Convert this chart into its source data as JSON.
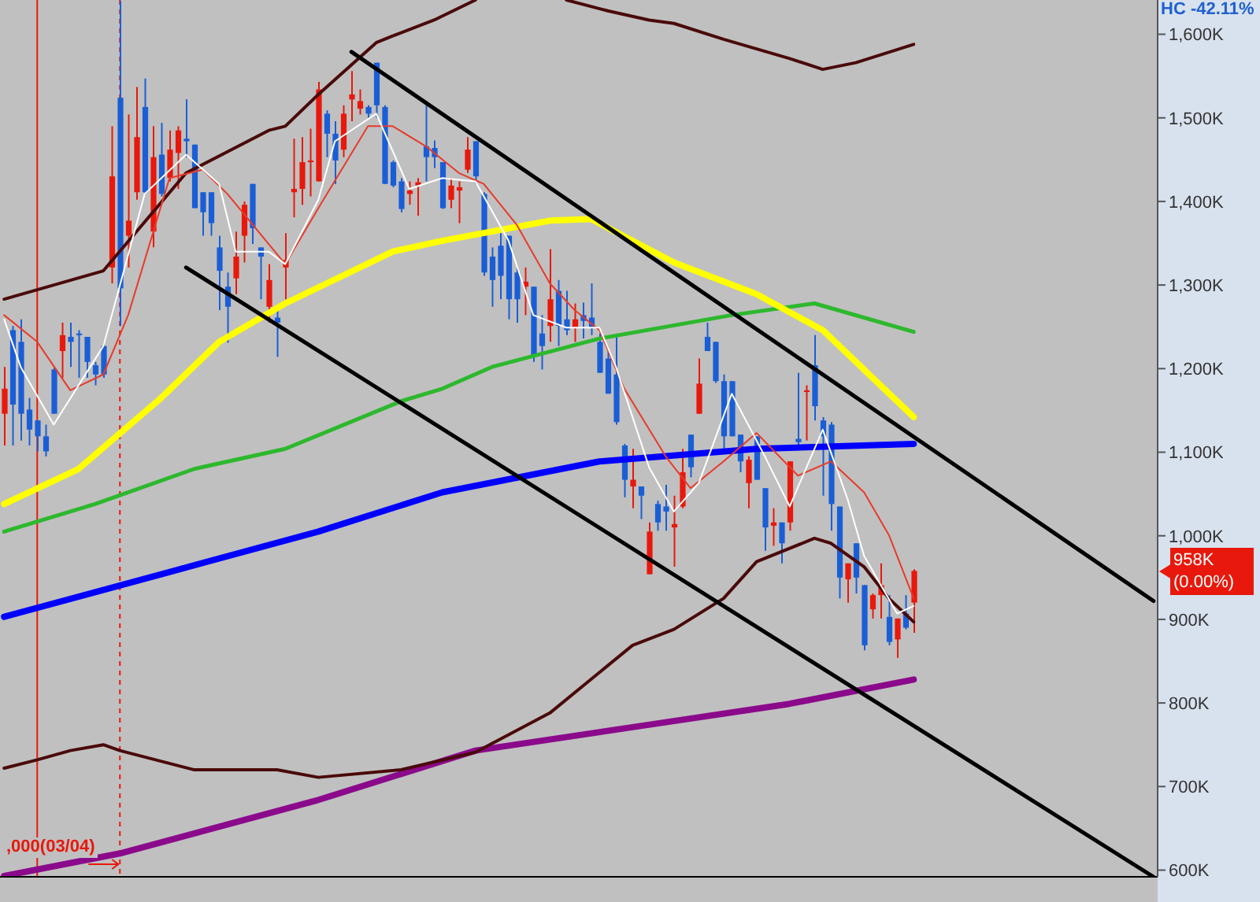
{
  "chart_data": {
    "type": "candlestick",
    "categories": [
      null,
      null,
      null,
      null,
      null,
      null,
      null,
      null,
      null,
      null,
      null,
      null,
      null,
      null,
      null,
      null,
      null,
      null,
      null,
      null,
      null,
      null,
      null,
      null,
      null,
      null,
      null,
      null,
      null,
      null,
      null,
      null,
      null,
      null,
      null,
      null,
      null,
      null,
      null,
      null,
      null,
      null,
      null,
      null,
      null,
      null,
      null,
      null,
      null,
      null,
      null,
      null,
      null,
      null,
      null,
      null,
      null,
      null,
      null,
      null,
      null,
      null,
      null,
      null,
      null,
      null,
      null,
      null,
      null,
      null,
      null,
      null,
      null,
      null,
      null,
      null,
      null,
      null,
      null,
      null,
      null,
      null,
      null,
      null,
      null,
      null,
      null,
      null,
      null,
      null,
      null,
      null,
      null,
      null,
      null,
      null,
      null,
      null,
      null,
      null,
      null,
      null,
      null,
      null,
      null,
      null,
      null,
      null,
      null,
      null,
      null,
      null,
      null,
      null,
      null,
      null,
      null,
      null,
      null,
      null,
      null,
      null,
      null,
      null,
      null,
      null,
      null,
      null,
      null,
      null,
      null,
      null,
      null,
      null,
      null,
      null,
      null,
      null,
      null,
      null
    ],
    "ohlc": [
      [
        1146,
        1202,
        1108,
        1176
      ],
      [
        1246,
        1251,
        1108,
        1157
      ],
      [
        1232,
        1259,
        1114,
        1146
      ],
      [
        1151,
        1165,
        1108,
        1127
      ],
      [
        1138,
        1138,
        1101,
        1119
      ],
      [
        1119,
        1133,
        1095,
        1101
      ],
      [
        1199,
        1202,
        1146,
        1146
      ],
      [
        1221,
        1255,
        1189,
        1240
      ],
      [
        1238,
        1255,
        1202,
        1232
      ],
      [
        1242,
        1246,
        1189,
        1240
      ],
      [
        1238,
        1238,
        1189,
        1208
      ],
      [
        1204,
        1208,
        1180,
        1193
      ],
      [
        1227,
        1231,
        1189,
        1193
      ],
      [
        1321,
        1490,
        1302,
        1430
      ],
      [
        1524,
        1640,
        1251,
        1296
      ],
      [
        1359,
        1504,
        1321,
        1377
      ],
      [
        1411,
        1537,
        1402,
        1477
      ],
      [
        1513,
        1547,
        1409,
        1411
      ],
      [
        1364,
        1490,
        1345,
        1453
      ],
      [
        1456,
        1494,
        1406,
        1409
      ],
      [
        1428,
        1485,
        1424,
        1462
      ],
      [
        1458,
        1490,
        1415,
        1485
      ],
      [
        1475,
        1522,
        1453,
        1472
      ],
      [
        1468,
        1468,
        1392,
        1392
      ],
      [
        1411,
        1411,
        1359,
        1387
      ],
      [
        1411,
        1411,
        1359,
        1374
      ],
      [
        1345,
        1359,
        1270,
        1317
      ],
      [
        1298,
        1315,
        1231,
        1274
      ],
      [
        1308,
        1364,
        1289,
        1334
      ],
      [
        1359,
        1400,
        1327,
        1396
      ],
      [
        1421,
        1421,
        1349,
        1368
      ],
      [
        1345,
        1345,
        1283,
        1334
      ],
      [
        1274,
        1325,
        1255,
        1306
      ],
      [
        1261,
        1270,
        1214,
        1255
      ],
      [
        1321,
        1362,
        1283,
        1330
      ],
      [
        1411,
        1475,
        1381,
        1415
      ],
      [
        1415,
        1477,
        1396,
        1447
      ],
      [
        1447,
        1487,
        1406,
        1449
      ],
      [
        1424,
        1543,
        1424,
        1534
      ],
      [
        1505,
        1509,
        1453,
        1481
      ],
      [
        1481,
        1496,
        1421,
        1449
      ],
      [
        1462,
        1515,
        1453,
        1505
      ],
      [
        1522,
        1556,
        1496,
        1528
      ],
      [
        1511,
        1534,
        1504,
        1520
      ],
      [
        1513,
        1515,
        1500,
        1505
      ],
      [
        1566,
        1566,
        1500,
        1515
      ],
      [
        1513,
        1515,
        1421,
        1421
      ],
      [
        1447,
        1449,
        1417,
        1419
      ],
      [
        1424,
        1428,
        1387,
        1391
      ],
      [
        1409,
        1424,
        1396,
        1413
      ],
      [
        1419,
        1428,
        1383,
        1423
      ],
      [
        1466,
        1519,
        1424,
        1453
      ],
      [
        1464,
        1473,
        1440,
        1453
      ],
      [
        1447,
        1447,
        1391,
        1392
      ],
      [
        1402,
        1428,
        1392,
        1419
      ],
      [
        1413,
        1424,
        1374,
        1417
      ],
      [
        1438,
        1477,
        1434,
        1462
      ],
      [
        1472,
        1472,
        1421,
        1430
      ],
      [
        1409,
        1411,
        1311,
        1315
      ],
      [
        1334,
        1345,
        1274,
        1306
      ],
      [
        1347,
        1362,
        1283,
        1311
      ],
      [
        1359,
        1359,
        1259,
        1283
      ],
      [
        1315,
        1321,
        1255,
        1283
      ],
      [
        1298,
        1321,
        1264,
        1304
      ],
      [
        1298,
        1298,
        1208,
        1214
      ],
      [
        1242,
        1264,
        1199,
        1227
      ],
      [
        1251,
        1343,
        1232,
        1283
      ],
      [
        1293,
        1306,
        1227,
        1251
      ],
      [
        1259,
        1293,
        1240,
        1246
      ],
      [
        1249,
        1278,
        1232,
        1259
      ],
      [
        1264,
        1279,
        1236,
        1257
      ],
      [
        1261,
        1302,
        1240,
        1249
      ],
      [
        1232,
        1242,
        1195,
        1195
      ],
      [
        1212,
        1221,
        1170,
        1170
      ],
      [
        1193,
        1240,
        1133,
        1136
      ],
      [
        1108,
        1110,
        1046,
        1067
      ],
      [
        1059,
        1104,
        1033,
        1067
      ],
      [
        1059,
        1059,
        1020,
        1048
      ],
      [
        954,
        1016,
        954,
        1005
      ],
      [
        1038,
        1042,
        1006,
        1016
      ],
      [
        1035,
        1061,
        1006,
        1029
      ],
      [
        1010,
        1048,
        963,
        1014
      ],
      [
        1035,
        1104,
        1033,
        1076
      ],
      [
        1121,
        1121,
        1070,
        1082
      ],
      [
        1146,
        1212,
        1146,
        1182
      ],
      [
        1238,
        1255,
        1221,
        1221
      ],
      [
        1232,
        1232,
        1183,
        1185
      ],
      [
        1185,
        1193,
        1101,
        1119
      ],
      [
        1185,
        1185,
        1119,
        1119
      ],
      [
        1121,
        1121,
        1076,
        1089
      ],
      [
        1063,
        1095,
        1033,
        1091
      ],
      [
        1119,
        1119,
        1067,
        1067
      ],
      [
        1057,
        1057,
        982,
        1010
      ],
      [
        1012,
        1033,
        988,
        1016
      ],
      [
        1016,
        1016,
        967,
        991
      ],
      [
        1016,
        1089,
        1006,
        1089
      ],
      [
        1116,
        1195,
        1108,
        1112
      ],
      [
        1172,
        1180,
        1114,
        1174
      ],
      [
        1204,
        1240,
        1138,
        1155
      ],
      [
        1138,
        1142,
        1048,
        1119
      ],
      [
        1133,
        1136,
        1006,
        1038
      ],
      [
        1035,
        1035,
        925,
        950
      ],
      [
        948,
        967,
        920,
        967
      ],
      [
        991,
        991,
        931,
        950
      ],
      [
        941,
        941,
        863,
        869
      ],
      [
        912,
        931,
        901,
        929
      ],
      [
        929,
        967,
        901,
        941
      ],
      [
        903,
        929,
        869,
        873
      ],
      [
        876,
        901,
        854,
        901
      ],
      [
        907,
        929,
        888,
        890
      ],
      [
        920,
        960,
        884,
        958
      ],
      null,
      null,
      null,
      null,
      null,
      null,
      null,
      null,
      null,
      null,
      null,
      null,
      null,
      null,
      null,
      null,
      null,
      null,
      null,
      null,
      null,
      null,
      null,
      null,
      null,
      null,
      null,
      null,
      null
    ],
    "colors": [
      "#e8180c",
      "#1a5ed6",
      "#1a5ed6",
      "#1a5ed6",
      "#1a5ed6",
      "#1a5ed6",
      "#1a5ed6",
      "#e8180c",
      "#1a5ed6",
      "#1a5ed6",
      "#1a5ed6",
      "#1a5ed6",
      "#1a5ed6",
      "#e8180c",
      "#1a5ed6",
      "#e8180c",
      "#e8180c",
      "#1a5ed6",
      "#e8180c",
      "#1a5ed6",
      "#e8180c",
      "#e8180c",
      "#1a5ed6",
      "#1a5ed6",
      "#1a5ed6",
      "#1a5ed6",
      "#1a5ed6",
      "#1a5ed6",
      "#e8180c",
      "#e8180c",
      "#1a5ed6",
      "#1a5ed6",
      "#e8180c",
      "#1a5ed6",
      "#e8180c",
      "#e8180c",
      "#e8180c",
      "#e8180c",
      "#e8180c",
      "#1a5ed6",
      "#1a5ed6",
      "#e8180c",
      "#e8180c",
      "#e8180c",
      "#1a5ed6",
      "#1a5ed6",
      "#1a5ed6",
      "#1a5ed6",
      "#1a5ed6",
      "#e8180c",
      "#e8180c",
      "#1a5ed6",
      "#1a5ed6",
      "#1a5ed6",
      "#e8180c",
      "#e8180c",
      "#e8180c",
      "#1a5ed6",
      "#1a5ed6",
      "#1a5ed6",
      "#1a5ed6",
      "#1a5ed6",
      "#1a5ed6",
      "#e8180c",
      "#1a5ed6",
      "#1a5ed6",
      "#e8180c",
      "#1a5ed6",
      "#1a5ed6",
      "#e8180c",
      "#1a5ed6",
      "#1a5ed6",
      "#1a5ed6",
      "#1a5ed6",
      "#1a5ed6",
      "#1a5ed6",
      "#e8180c",
      "#1a5ed6",
      "#e8180c",
      "#1a5ed6",
      "#1a5ed6",
      "#e8180c",
      "#e8180c",
      "#1a5ed6",
      "#e8180c",
      "#1a5ed6",
      "#1a5ed6",
      "#1a5ed6",
      "#1a5ed6",
      "#1a5ed6",
      "#e8180c",
      "#1a5ed6",
      "#1a5ed6",
      "#e8180c",
      "#1a5ed6",
      "#e8180c",
      "#1a5ed6",
      "#e8180c",
      "#1a5ed6",
      "#1a5ed6",
      "#1a5ed6",
      "#1a5ed6",
      "#e8180c",
      "#1a5ed6",
      "#1a5ed6",
      "#e8180c",
      "#e8180c",
      "#1a5ed6",
      "#e8180c",
      "#1a5ed6",
      "#e8180c",
      null,
      null,
      null,
      null,
      null,
      null,
      null,
      null,
      null,
      null,
      null,
      null,
      null,
      null,
      null,
      null,
      null,
      null,
      null,
      null,
      null,
      null,
      null,
      null,
      null,
      null,
      null,
      null,
      null
    ],
    "series": [
      {
        "type": "line",
        "color": "#8b0a8b",
        "values": [
          593,
          null,
          null,
          null,
          null,
          null,
          null,
          null,
          null,
          null,
          null,
          null,
          null,
          null,
          620,
          null,
          null,
          null,
          null,
          null,
          null,
          null,
          null,
          null,
          null,
          null,
          null,
          null,
          null,
          null,
          null,
          null,
          null,
          null,
          null,
          null,
          null,
          null,
          684,
          null,
          null,
          null,
          null,
          null,
          null,
          null,
          null,
          null,
          null,
          null,
          null,
          null,
          null,
          null,
          null,
          null,
          null,
          743,
          null,
          null,
          null,
          null,
          null,
          null,
          null,
          null,
          null,
          null,
          null,
          null,
          null,
          null,
          null,
          null,
          null,
          null,
          771,
          null,
          null,
          null,
          null,
          null,
          null,
          null,
          null,
          null,
          null,
          null,
          null,
          null,
          null,
          null,
          null,
          null,
          null,
          799,
          null,
          null,
          null,
          null,
          null,
          null,
          null,
          null,
          null,
          null,
          null,
          null,
          null,
          null,
          828,
          null,
          null,
          null,
          null,
          null,
          null,
          null,
          null,
          null,
          null,
          null,
          null,
          null,
          null,
          null,
          null,
          null,
          null,
          null,
          null,
          null,
          null,
          null,
          null,
          null,
          null,
          null,
          null,
          null
        ]
      },
      {
        "type": "line",
        "color": "#0000ff",
        "values": [
          903,
          null,
          null,
          null,
          null,
          null,
          null,
          null,
          null,
          null,
          null,
          null,
          null,
          null,
          null,
          null,
          null,
          null,
          null,
          954,
          null,
          null,
          null,
          null,
          null,
          null,
          null,
          null,
          null,
          null,
          null,
          null,
          null,
          null,
          null,
          null,
          null,
          null,
          1005,
          null,
          null,
          null,
          null,
          null,
          null,
          null,
          null,
          null,
          null,
          null,
          null,
          null,
          null,
          1052,
          null,
          null,
          null,
          null,
          null,
          null,
          null,
          null,
          null,
          null,
          null,
          null,
          null,
          null,
          null,
          null,
          null,
          null,
          1089,
          null,
          null,
          null,
          null,
          null,
          null,
          null,
          null,
          null,
          null,
          null,
          null,
          null,
          null,
          null,
          null,
          null,
          null,
          1104,
          null,
          null,
          null,
          null,
          null,
          null,
          null,
          null,
          null,
          null,
          null,
          null,
          null,
          null,
          null,
          null,
          null,
          null,
          1110,
          null,
          null,
          null,
          null,
          null,
          null,
          null,
          null,
          null,
          null,
          null,
          null,
          null,
          null,
          null,
          null,
          null,
          null,
          null,
          null,
          null,
          null,
          null,
          null,
          null,
          null,
          null,
          null,
          null
        ]
      },
      {
        "type": "line",
        "color": "#2db82d",
        "values": [
          1005,
          null,
          null,
          null,
          null,
          null,
          null,
          null,
          null,
          null,
          null,
          1038,
          null,
          null,
          null,
          null,
          null,
          null,
          null,
          null,
          null,
          null,
          null,
          1080,
          null,
          null,
          null,
          null,
          null,
          null,
          null,
          null,
          null,
          null,
          1104,
          null,
          null,
          null,
          null,
          null,
          null,
          null,
          null,
          null,
          null,
          null,
          null,
          null,
          1161,
          null,
          null,
          null,
          null,
          1176,
          null,
          null,
          null,
          null,
          null,
          1202,
          null,
          null,
          null,
          null,
          null,
          null,
          null,
          null,
          null,
          null,
          null,
          null,
          1236,
          null,
          null,
          null,
          null,
          null,
          null,
          null,
          null,
          null,
          null,
          null,
          null,
          null,
          null,
          null,
          1264,
          null,
          null,
          null,
          null,
          null,
          null,
          null,
          null,
          null,
          1278,
          null,
          null,
          null,
          null,
          null,
          null,
          null,
          null,
          null,
          null,
          null,
          1244,
          null,
          null,
          null,
          null,
          null,
          null,
          null,
          null,
          null,
          null,
          null,
          null,
          null,
          null,
          null,
          null,
          null,
          null,
          null,
          null,
          null,
          null,
          null,
          null,
          null,
          null,
          null,
          null,
          null
        ]
      },
      {
        "type": "line",
        "color": "#ffff00",
        "values": [
          1038,
          null,
          null,
          null,
          null,
          null,
          null,
          null,
          null,
          1080,
          null,
          null,
          null,
          null,
          null,
          null,
          null,
          null,
          null,
          1165,
          null,
          null,
          null,
          null,
          null,
          null,
          1232,
          null,
          null,
          null,
          null,
          null,
          null,
          null,
          1278,
          null,
          null,
          null,
          null,
          null,
          null,
          null,
          null,
          null,
          null,
          null,
          null,
          1340,
          null,
          null,
          null,
          null,
          null,
          1353,
          null,
          null,
          null,
          null,
          null,
          null,
          null,
          null,
          null,
          null,
          null,
          null,
          1377,
          null,
          null,
          null,
          null,
          1379,
          null,
          null,
          null,
          null,
          null,
          null,
          null,
          null,
          null,
          1327,
          null,
          null,
          null,
          null,
          null,
          null,
          null,
          null,
          null,
          1289,
          null,
          null,
          null,
          null,
          null,
          null,
          null,
          1246,
          null,
          null,
          null,
          null,
          null,
          null,
          null,
          null,
          null,
          null,
          1142,
          null,
          null,
          null,
          null,
          null,
          null,
          null,
          null,
          null,
          null,
          null,
          null,
          null,
          null,
          null,
          null,
          null,
          null,
          null,
          null,
          null,
          null,
          null,
          null,
          null,
          null,
          null,
          null,
          null
        ]
      },
      {
        "type": "line",
        "color": "#4a0a0a",
        "values": [
          1283,
          null,
          null,
          null,
          null,
          null,
          null,
          null,
          null,
          null,
          null,
          null,
          1317,
          null,
          null,
          null,
          null,
          null,
          null,
          null,
          null,
          null,
          1434,
          null,
          null,
          null,
          null,
          null,
          null,
          null,
          null,
          null,
          1485,
          null,
          1490,
          null,
          null,
          null,
          1528,
          null,
          null,
          null,
          null,
          null,
          null,
          1590,
          null,
          1598,
          null,
          null,
          null,
          null,
          1617,
          null,
          null,
          null,
          null,
          1641,
          null,
          null,
          null,
          null,
          null,
          null,
          null,
          null,
          null,
          null,
          null,
          null,
          null,
          null,
          null,
          null,
          null,
          null,
          null,
          null,
          null,
          null,
          null,
          null,
          null,
          null,
          null,
          null,
          null,
          null,
          null,
          null,
          null,
          null,
          null,
          null,
          null,
          null,
          null,
          null,
          null,
          null,
          null,
          null,
          null,
          null,
          null,
          null,
          null,
          null,
          null,
          null,
          null,
          null,
          null,
          null,
          null,
          null,
          null,
          null,
          null,
          null,
          null,
          null,
          null,
          null,
          null,
          null,
          null,
          null,
          null,
          null,
          null,
          null,
          null,
          null,
          null,
          null,
          null,
          null,
          null,
          null
        ]
      },
      {
        "type": "line",
        "color": "#4a0a0a",
        "values": [
          null,
          null,
          null,
          null,
          null,
          null,
          null,
          null,
          null,
          null,
          null,
          null,
          null,
          null,
          null,
          null,
          null,
          null,
          null,
          null,
          null,
          null,
          null,
          null,
          null,
          null,
          null,
          null,
          null,
          null,
          null,
          null,
          null,
          null,
          null,
          null,
          null,
          null,
          null,
          null,
          null,
          null,
          null,
          null,
          null,
          null,
          null,
          null,
          null,
          null,
          null,
          null,
          null,
          null,
          null,
          null,
          null,
          null,
          null,
          null,
          null,
          null,
          null,
          null,
          null,
          null,
          null,
          null,
          1641,
          null,
          null,
          null,
          null,
          1628,
          null,
          null,
          null,
          null,
          1617,
          null,
          null,
          1613,
          null,
          null,
          null,
          null,
          null,
          1594,
          null,
          null,
          null,
          null,
          null,
          null,
          null,
          1571,
          null,
          null,
          null,
          1558,
          null,
          null,
          null,
          1566,
          null,
          null,
          null,
          null,
          null,
          null,
          1588,
          null,
          null,
          null,
          null,
          null,
          null,
          null,
          null,
          null,
          null,
          null,
          null,
          null,
          null,
          null,
          null,
          null,
          null,
          null,
          null,
          null,
          null,
          null,
          null,
          null,
          null,
          null,
          null,
          null
        ]
      },
      {
        "type": "line",
        "color": "#4a0a0a",
        "values": [
          722,
          null,
          null,
          null,
          732,
          null,
          null,
          null,
          743,
          null,
          null,
          null,
          750,
          null,
          743,
          null,
          null,
          null,
          null,
          null,
          null,
          null,
          null,
          720,
          null,
          null,
          null,
          null,
          null,
          null,
          null,
          null,
          null,
          720,
          null,
          null,
          null,
          null,
          711,
          null,
          null,
          null,
          null,
          null,
          null,
          null,
          null,
          null,
          720,
          null,
          null,
          null,
          null,
          null,
          null,
          null,
          null,
          741,
          null,
          null,
          null,
          null,
          null,
          null,
          null,
          null,
          788,
          null,
          null,
          null,
          null,
          null,
          null,
          null,
          null,
          null,
          869,
          null,
          null,
          null,
          null,
          888,
          null,
          null,
          null,
          null,
          null,
          925,
          null,
          null,
          null,
          969,
          null,
          null,
          null,
          null,
          null,
          null,
          997,
          null,
          991,
          null,
          null,
          null,
          963,
          null,
          null,
          925,
          null,
          null,
          897,
          null,
          null,
          null,
          null,
          null,
          null,
          null,
          null,
          null,
          null,
          null,
          null,
          null,
          null,
          null,
          null,
          null,
          null,
          null,
          null,
          null,
          null,
          null,
          null,
          null,
          null,
          null,
          null,
          null
        ]
      },
      {
        "type": "line",
        "color": "#e83a2a",
        "values": [
          1264,
          null,
          null,
          null,
          1232,
          null,
          null,
          null,
          1174,
          null,
          null,
          null,
          1193,
          null,
          null,
          1264,
          null,
          null,
          null,
          null,
          1428,
          null,
          null,
          null,
          1438,
          null,
          null,
          1409,
          null,
          null,
          null,
          null,
          null,
          null,
          1325,
          null,
          null,
          null,
          1392,
          null,
          null,
          null,
          null,
          null,
          1490,
          null,
          null,
          1490,
          null,
          null,
          null,
          1466,
          null,
          null,
          null,
          1434,
          null,
          null,
          1421,
          null,
          null,
          null,
          1372,
          null,
          null,
          null,
          1302,
          null,
          null,
          1270,
          null,
          null,
          1246,
          null,
          null,
          1176,
          null,
          null,
          null,
          null,
          1095,
          null,
          null,
          1057,
          null,
          null,
          null,
          1089,
          null,
          null,
          null,
          1123,
          null,
          null,
          null,
          null,
          1072,
          null,
          null,
          null,
          1089,
          null,
          null,
          null,
          1052,
          null,
          null,
          1001,
          null,
          null,
          925,
          null,
          null,
          null,
          null,
          null,
          null,
          null,
          null,
          null,
          null,
          null,
          null,
          null,
          null,
          null,
          null,
          null,
          null,
          null,
          null,
          null,
          null,
          null,
          null,
          null,
          null,
          null,
          null,
          null
        ]
      },
      {
        "type": "line",
        "color": "#ffffff",
        "values": [
          1259,
          null,
          1202,
          null,
          null,
          null,
          1133,
          null,
          null,
          null,
          null,
          null,
          1227,
          null,
          null,
          null,
          null,
          1409,
          null,
          null,
          null,
          null,
          1456,
          null,
          null,
          null,
          1421,
          null,
          1340,
          null,
          null,
          null,
          1340,
          null,
          1325,
          null,
          null,
          null,
          1402,
          null,
          1472,
          null,
          null,
          null,
          null,
          1505,
          null,
          null,
          null,
          1415,
          null,
          null,
          null,
          1428,
          null,
          null,
          null,
          1424,
          null,
          null,
          null,
          1353,
          null,
          null,
          1264,
          null,
          null,
          null,
          1249,
          null,
          null,
          null,
          1249,
          null,
          1202,
          null,
          null,
          null,
          1082,
          null,
          null,
          1029,
          null,
          null,
          1063,
          null,
          null,
          null,
          1170,
          null,
          null,
          null,
          1095,
          null,
          null,
          1035,
          null,
          null,
          null,
          1127,
          null,
          null,
          1044,
          null,
          976,
          null,
          null,
          null,
          907,
          null,
          916,
          null,
          null,
          null,
          null,
          null,
          null,
          null,
          null,
          null,
          null,
          null,
          null,
          null,
          null,
          null,
          null,
          null,
          null,
          null,
          null,
          null,
          null,
          null,
          null,
          null,
          null,
          null,
          null,
          null
        ]
      },
      {
        "type": "line",
        "color": "#000000",
        "values": [
          null,
          null,
          null,
          null,
          null,
          null,
          null,
          null,
          null,
          null,
          null,
          null,
          null,
          null,
          null,
          null,
          null,
          null,
          null,
          null,
          null,
          null,
          null,
          null,
          null,
          null,
          null,
          null,
          null,
          null,
          null,
          null,
          null,
          null,
          null,
          null,
          null,
          null,
          null,
          null,
          null,
          null,
          1579,
          null,
          null,
          null,
          null,
          null,
          null,
          null,
          null,
          null,
          null,
          null,
          null,
          null,
          null,
          null,
          null,
          null,
          null,
          null,
          null,
          null,
          null,
          null,
          null,
          null,
          null,
          null,
          null,
          null,
          null,
          null,
          null,
          null,
          null,
          null,
          null,
          null,
          null,
          null,
          null,
          null,
          null,
          null,
          null,
          null,
          null,
          null,
          null,
          null,
          null,
          null,
          null,
          null,
          null,
          null,
          null,
          null,
          null,
          null,
          null,
          null,
          null,
          null,
          null,
          null,
          null,
          null,
          null,
          null,
          null,
          null,
          null,
          null,
          null,
          null,
          null,
          null,
          null,
          null,
          null,
          null,
          null,
          null,
          null,
          null,
          null,
          null,
          null,
          null,
          null,
          null,
          null,
          null,
          null,
          null,
          null,
          922
        ]
      },
      {
        "type": "line",
        "color": "#000000",
        "values": [
          null,
          null,
          null,
          null,
          null,
          null,
          null,
          null,
          null,
          null,
          null,
          null,
          null,
          null,
          null,
          null,
          null,
          null,
          null,
          null,
          null,
          null,
          1321,
          null,
          null,
          null,
          null,
          null,
          null,
          null,
          null,
          null,
          null,
          null,
          null,
          null,
          null,
          null,
          null,
          null,
          null,
          null,
          null,
          null,
          null,
          null,
          null,
          null,
          null,
          null,
          null,
          null,
          null,
          null,
          null,
          null,
          null,
          null,
          null,
          null,
          null,
          null,
          null,
          null,
          null,
          null,
          null,
          null,
          null,
          null,
          null,
          null,
          null,
          null,
          null,
          null,
          null,
          null,
          null,
          null,
          null,
          null,
          null,
          null,
          null,
          null,
          null,
          null,
          null,
          null,
          null,
          null,
          null,
          null,
          null,
          null,
          null,
          null,
          null,
          null,
          null,
          null,
          null,
          null,
          null,
          null,
          null,
          null,
          null,
          null,
          null,
          null,
          null,
          null,
          null,
          null,
          null,
          null,
          null,
          null,
          null,
          null,
          null,
          null,
          null,
          null,
          null,
          null,
          null,
          null,
          null,
          null,
          null,
          null,
          null,
          null,
          null,
          null,
          null,
          592
        ]
      }
    ],
    "ylim": [
      592,
      1641
    ],
    "yticks": [
      {
        "value": 600,
        "label": "600K"
      },
      {
        "value": 700,
        "label": "700K"
      },
      {
        "value": 800,
        "label": "800K"
      },
      {
        "value": 900,
        "label": "900K"
      },
      {
        "value": 1000,
        "label": "1,000K"
      },
      {
        "value": 1100,
        "label": "1,100K"
      },
      {
        "value": 1200,
        "label": "1,200K"
      },
      {
        "value": 1300,
        "label": "1,300K"
      },
      {
        "value": 1400,
        "label": "1,400K"
      },
      {
        "value": 1500,
        "label": "1,500K"
      },
      {
        "value": 1600,
        "label": "1,600K"
      }
    ],
    "tick_labels": "y",
    "annotations": [
      "HC -42.11%",
      ",000(03/04)",
      "958K (0.00%)"
    ]
  }
}
